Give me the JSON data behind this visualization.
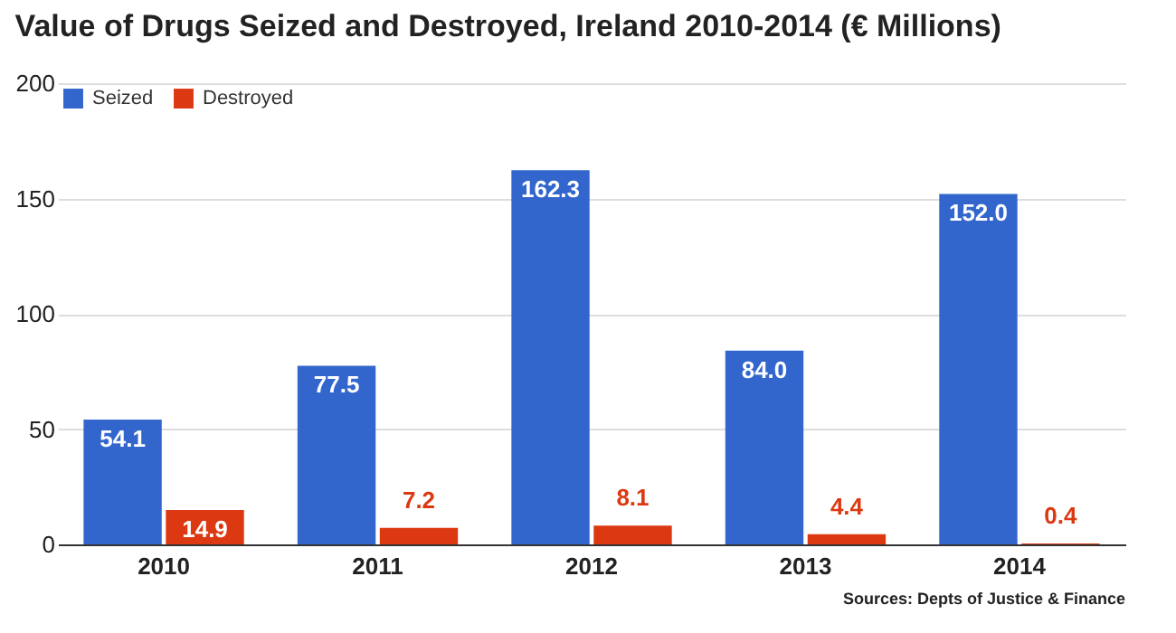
{
  "chart_data": {
    "type": "bar",
    "title": "Value of Drugs Seized and Destroyed, Ireland 2010-2014 (€ Millions)",
    "categories": [
      "2010",
      "2011",
      "2012",
      "2013",
      "2014"
    ],
    "series": [
      {
        "name": "Seized",
        "color": "#3366cc",
        "values": [
          54.1,
          77.5,
          162.3,
          84.0,
          152.0
        ],
        "value_labels": [
          "54.1",
          "77.5",
          "162.3",
          "84.0",
          "152.0"
        ]
      },
      {
        "name": "Destroyed",
        "color": "#dc3912",
        "values": [
          14.9,
          7.2,
          8.1,
          4.4,
          0.4
        ],
        "value_labels": [
          "14.9",
          "7.2",
          "8.1",
          "4.4",
          "0.4"
        ]
      }
    ],
    "ylim": [
      0,
      200
    ],
    "yticks": [
      0,
      50,
      100,
      150,
      200
    ],
    "grid": "y",
    "legend": "top left",
    "annotations": [
      "Sources: Depts of Justice & Finance"
    ]
  }
}
